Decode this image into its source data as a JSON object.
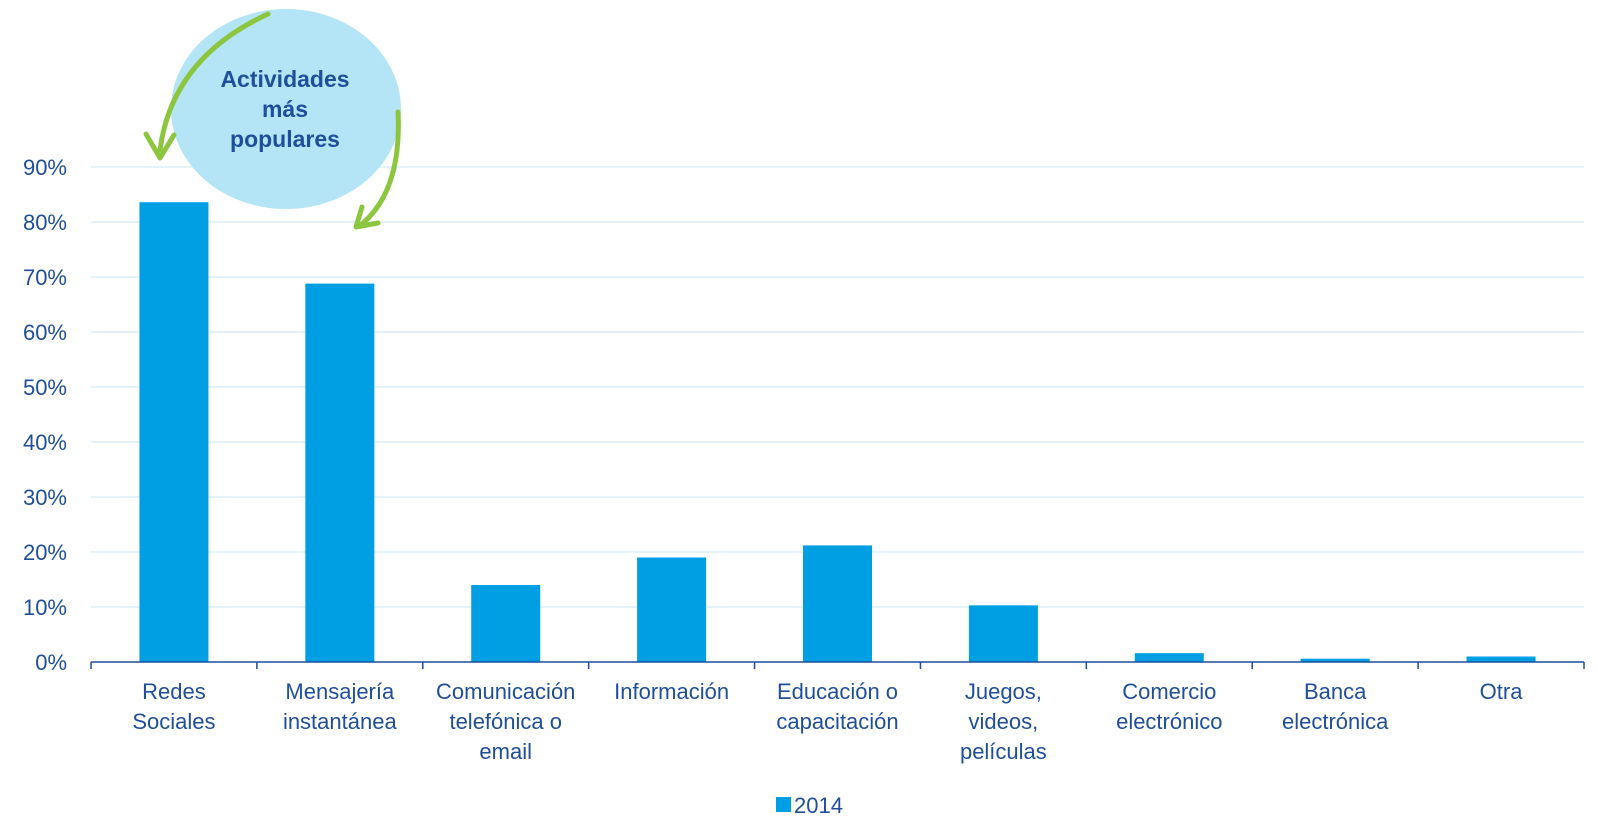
{
  "chart_data": {
    "type": "bar",
    "categories": [
      [
        "Redes",
        "Sociales"
      ],
      [
        "Mensajería",
        "instantánea"
      ],
      [
        "Comunicación",
        "telefónica o",
        "email"
      ],
      [
        "Información"
      ],
      [
        "Educación o",
        "capacitación"
      ],
      [
        "Juegos,",
        "videos,",
        "películas"
      ],
      [
        "Comercio",
        "electrónico"
      ],
      [
        "Banca",
        "electrónica"
      ],
      [
        "Otra"
      ]
    ],
    "series": [
      {
        "name": "2014",
        "values": [
          83.6,
          68.8,
          14.0,
          19.0,
          21.2,
          10.3,
          1.6,
          0.6,
          1.0
        ],
        "color": "#009fe3"
      }
    ],
    "yticks": [
      "0%",
      "10%",
      "20%",
      "30%",
      "40%",
      "50%",
      "60%",
      "70%",
      "80%",
      "90%"
    ],
    "ylim": [
      0,
      90
    ],
    "grid": true,
    "legend_position": "bottom-center",
    "annotation": {
      "lines": [
        "Actividades",
        "más",
        "populares"
      ],
      "bubble_color": "#b3e5f7",
      "arrow_color": "#8cc63f"
    }
  }
}
